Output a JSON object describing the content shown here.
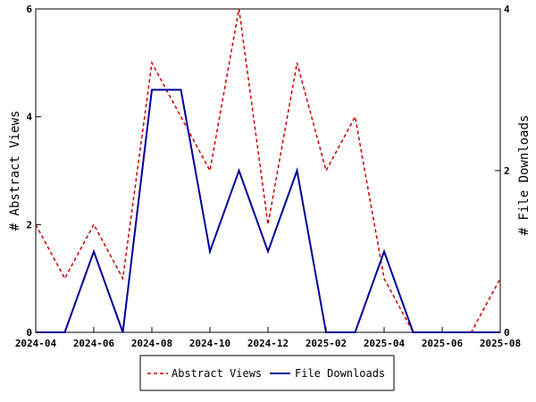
{
  "chart_data": {
    "type": "line",
    "x": [
      "2024-04",
      "2024-05",
      "2024-06",
      "2024-07",
      "2024-08",
      "2024-09",
      "2024-10",
      "2024-11",
      "2024-12",
      "2025-01",
      "2025-02",
      "2025-03",
      "2025-04",
      "2025-05",
      "2025-06",
      "2025-07",
      "2025-08"
    ],
    "x_tick_labels": [
      "2024-04",
      "2024-06",
      "2024-08",
      "2024-10",
      "2024-12",
      "2025-02",
      "2025-04",
      "2025-06",
      "2025-08"
    ],
    "ylabel": "# Abstract Views",
    "y2label": "# File Downloads",
    "ylim": [
      0,
      6
    ],
    "y2lim": [
      0,
      4
    ],
    "y_ticks": [
      "0",
      "2",
      "4",
      "6"
    ],
    "y2_ticks": [
      "0",
      "2",
      "4"
    ],
    "grid": false,
    "legend_position": "bottom",
    "series": [
      {
        "name": "Abstract Views",
        "axis": "left",
        "color": "#cc0000",
        "style": "dashed",
        "values": [
          2,
          1,
          2,
          1,
          5,
          4,
          3,
          6,
          2,
          5,
          3,
          4,
          1,
          0,
          0,
          0,
          1
        ]
      },
      {
        "name": "File Downloads",
        "axis": "right",
        "color": "#000099",
        "style": "solid",
        "values": [
          0,
          0,
          1,
          0,
          3,
          3,
          1,
          2,
          1,
          2,
          0,
          0,
          1,
          0,
          0,
          0,
          0
        ]
      }
    ]
  }
}
